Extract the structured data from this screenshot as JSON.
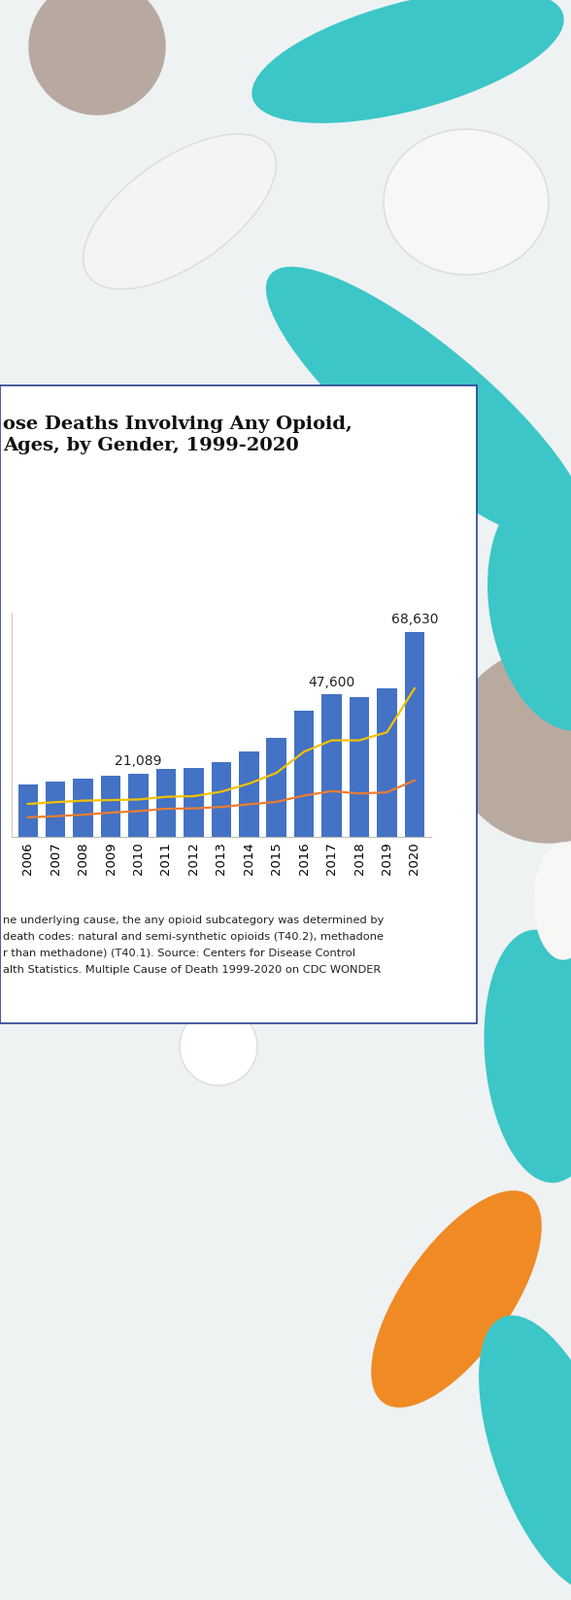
{
  "chart_data": {
    "type": "bar",
    "title": "ose Deaths Involving Any Opioid,\nAges, by Gender, 1999-2020",
    "categories": [
      "2006",
      "2007",
      "2008",
      "2009",
      "2010",
      "2011",
      "2012",
      "2013",
      "2014",
      "2015",
      "2016",
      "2017",
      "2018",
      "2019",
      "2020"
    ],
    "values": [
      17545,
      18516,
      19582,
      20422,
      21089,
      22784,
      23166,
      25052,
      28647,
      33091,
      42249,
      47600,
      46802,
      49860,
      68630
    ],
    "value_labels": [
      null,
      null,
      null,
      null,
      "21,089",
      null,
      null,
      null,
      null,
      null,
      null,
      "47,600",
      null,
      null,
      "68,630"
    ],
    "color": "#4472c4",
    "series": [
      {
        "type": "line",
        "color": "#f2c200",
        "values": [
          11000,
          11600,
          12100,
          12300,
          12500,
          13400,
          13600,
          15100,
          17800,
          21400,
          28500,
          32300,
          32300,
          35000,
          49700
        ]
      },
      {
        "type": "line",
        "color": "#ed7d31",
        "values": [
          6500,
          6900,
          7400,
          8100,
          8600,
          9400,
          9500,
          10000,
          10900,
          11700,
          13800,
          15300,
          14500,
          14900,
          18900
        ]
      }
    ],
    "ylim": [
      0,
      75000
    ],
    "tick_labels": "x",
    "footnote": [
      "ne underlying cause, the any opioid subcategory was determined by",
      "death codes: natural and semi-synthetic opioids (T40.2), methadone",
      "r than methadone) (T40.1). Source: Centers for Disease Control",
      "alth Statistics. Multiple Cause of Death 1999-2020 on CDC WONDER"
    ]
  }
}
